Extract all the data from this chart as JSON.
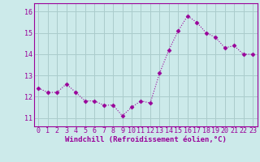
{
  "x": [
    0,
    1,
    2,
    3,
    4,
    5,
    6,
    7,
    8,
    9,
    10,
    11,
    12,
    13,
    14,
    15,
    16,
    17,
    18,
    19,
    20,
    21,
    22,
    23
  ],
  "y": [
    12.4,
    12.2,
    12.2,
    12.6,
    12.2,
    11.8,
    11.8,
    11.6,
    11.6,
    11.1,
    11.5,
    11.8,
    11.7,
    13.1,
    14.2,
    15.1,
    15.8,
    15.5,
    15.0,
    14.8,
    14.3,
    14.4,
    14.0,
    14.0
  ],
  "line_color": "#990099",
  "marker": "D",
  "markersize": 2.5,
  "linewidth": 0.8,
  "background_color": "#cceaea",
  "grid_color": "#aacccc",
  "xlabel": "Windchill (Refroidissement éolien,°C)",
  "ylabel_ticks": [
    11,
    12,
    13,
    14,
    15,
    16
  ],
  "xlim": [
    -0.5,
    23.5
  ],
  "ylim": [
    10.6,
    16.4
  ],
  "xlabel_fontsize": 6.5,
  "tick_fontsize": 6,
  "xlabel_fontweight": "bold"
}
